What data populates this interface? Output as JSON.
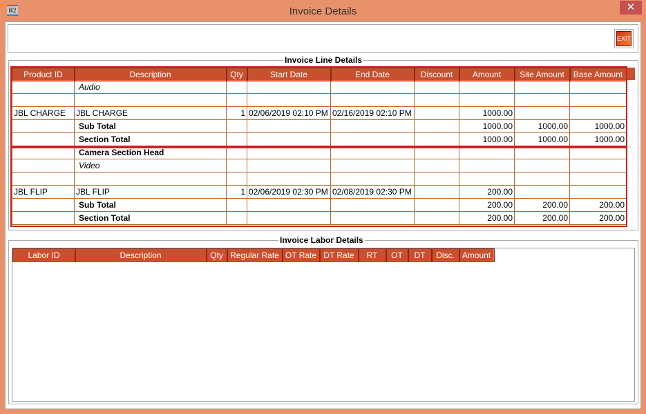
{
  "window": {
    "title": "Invoice Details",
    "app_icon": "R2",
    "close": "✕"
  },
  "toolbar": {
    "exit_label": "EXIT"
  },
  "line_details": {
    "legend": "Invoice Line Details",
    "columns": [
      "Product ID",
      "Description",
      "Qty",
      "Start Date",
      "End Date",
      "Discount",
      "Amount",
      "Site Amount",
      "Base Amount"
    ],
    "rows": [
      {
        "style": "italic",
        "cells": [
          "",
          "Audio",
          "",
          "",
          "",
          "",
          "",
          "",
          ""
        ]
      },
      {
        "style": "",
        "cells": [
          "",
          "",
          "",
          "",
          "",
          "",
          "",
          "",
          ""
        ]
      },
      {
        "style": "",
        "cells": [
          "JBL CHARGE",
          "JBL CHARGE",
          "1",
          "02/06/2019 02:10 PM",
          "02/16/2019 02:10 PM",
          "",
          "1000.00",
          "",
          ""
        ]
      },
      {
        "style": "bold",
        "cells": [
          "",
          "Sub Total",
          "",
          "",
          "",
          "",
          "1000.00",
          "1000.00",
          "1000.00"
        ]
      },
      {
        "style": "bold",
        "cells": [
          "",
          "Section Total",
          "",
          "",
          "",
          "",
          "1000.00",
          "1000.00",
          "1000.00"
        ]
      },
      {
        "style": "bold",
        "cells": [
          "",
          "Camera Section Head",
          "",
          "",
          "",
          "",
          "",
          "",
          ""
        ]
      },
      {
        "style": "italic",
        "cells": [
          "",
          "Video",
          "",
          "",
          "",
          "",
          "",
          "",
          ""
        ]
      },
      {
        "style": "",
        "cells": [
          "",
          "",
          "",
          "",
          "",
          "",
          "",
          "",
          ""
        ]
      },
      {
        "style": "",
        "cells": [
          "JBL FLIP",
          "JBL FLIP",
          "1",
          "02/06/2019 02:30 PM",
          "02/08/2019 02:30 PM",
          "",
          "200.00",
          "",
          ""
        ]
      },
      {
        "style": "bold",
        "cells": [
          "",
          "Sub Total",
          "",
          "",
          "",
          "",
          "200.00",
          "200.00",
          "200.00"
        ]
      },
      {
        "style": "bold",
        "cells": [
          "",
          "Section Total",
          "",
          "",
          "",
          "",
          "200.00",
          "200.00",
          "200.00"
        ]
      }
    ]
  },
  "labor_details": {
    "legend": "Invoice Labor Details",
    "columns": [
      "Labor ID",
      "Description",
      "Qty",
      "Regular Rate",
      "OT Rate",
      "DT Rate",
      "RT",
      "OT",
      "DT",
      "Disc.",
      "Amount"
    ]
  }
}
